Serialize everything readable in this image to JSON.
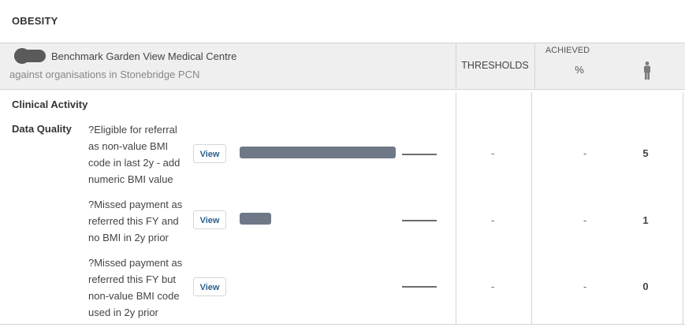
{
  "title": "OBESITY",
  "header": {
    "organisation": "Benchmark Garden View Medical Centre",
    "comparison": "against organisations in Stonebridge PCN",
    "thresholds_label": "THRESHOLDS",
    "achieved_label": "ACHIEVED",
    "percent_label": "%"
  },
  "section_title": "Clinical Activity",
  "group_label": "Data Quality",
  "rows": [
    {
      "description": "?Eligible for referral as non-value BMI code in last 2y - add numeric BMI value",
      "view_label": "View",
      "threshold": "-",
      "achieved_percent": "-",
      "count": "5",
      "relative_level": 1.0
    },
    {
      "description": "?Missed payment as referred this FY and no BMI in 2y prior",
      "view_label": "View",
      "threshold": "-",
      "achieved_percent": "-",
      "count": "1",
      "relative_level": 0.2
    },
    {
      "description": "?Missed payment as referred this FY but non-value BMI code used in 2y prior",
      "view_label": "View",
      "threshold": "-",
      "achieved_percent": "-",
      "count": "0",
      "relative_level": 0
    }
  ]
}
